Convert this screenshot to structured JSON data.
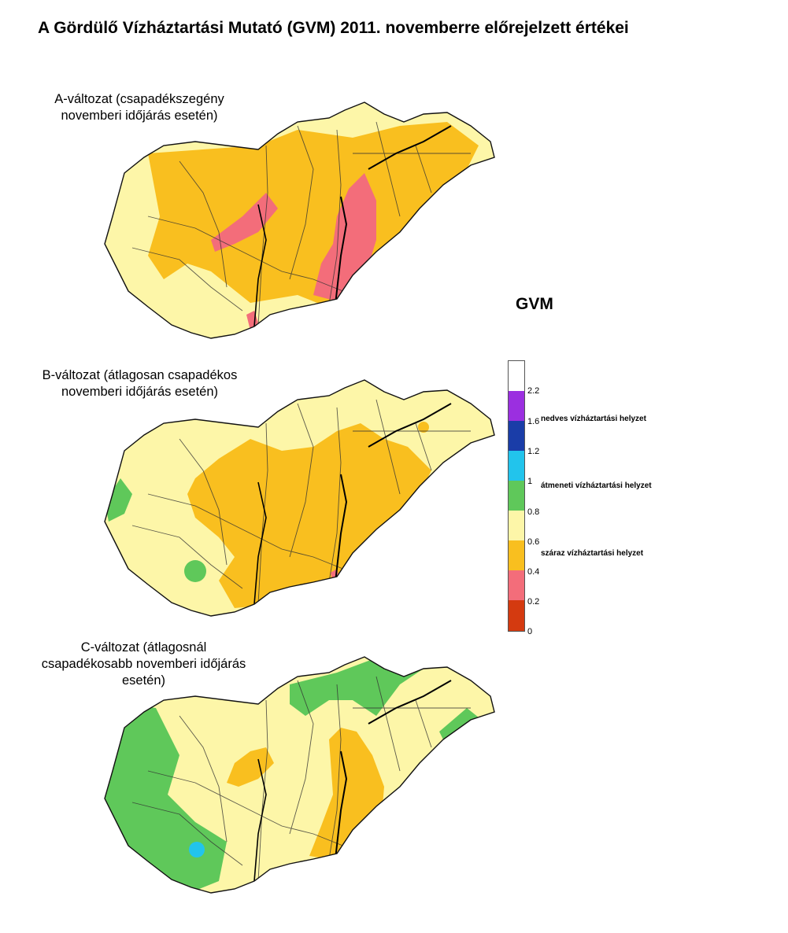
{
  "title": "A Gördülő Vízháztartási Mutató (GVM) 2011. novemberre előrejelzett értékei",
  "maps": [
    {
      "caption_lines": [
        "A-változat (csapadékszegény",
        "novemberi időjárás esetén)"
      ],
      "predominant_class": "száraz vízháztartási helyzet"
    },
    {
      "caption_lines": [
        "B-változat (átlagosan csapadékos",
        "novemberi időjárás esetén)"
      ],
      "predominant_class": "száraz vízháztartási helyzet"
    },
    {
      "caption_lines": [
        "C-változat (átlagosnál",
        "csapadékosabb novemberi időjárás",
        "esetén)"
      ],
      "predominant_class": "száraz vízháztartási helyzet"
    }
  ],
  "legend": {
    "title": "GVM",
    "ticks": [
      "2.2",
      "1.6",
      "1.2",
      "1",
      "0.8",
      "0.6",
      "0.4",
      "0.2",
      "0"
    ],
    "bands": [
      {
        "from": 2.2,
        "to": null,
        "color": "#ffffff"
      },
      {
        "from": 1.6,
        "to": 2.2,
        "color": "#9b2fe0"
      },
      {
        "from": 1.2,
        "to": 1.6,
        "color": "#1a3da8"
      },
      {
        "from": 1.0,
        "to": 1.2,
        "color": "#22c4ec"
      },
      {
        "from": 0.8,
        "to": 1.0,
        "color": "#5fc85a"
      },
      {
        "from": 0.6,
        "to": 0.8,
        "color": "#fdf6a8"
      },
      {
        "from": 0.4,
        "to": 0.6,
        "color": "#f9bf1f"
      },
      {
        "from": 0.2,
        "to": 0.4,
        "color": "#f36d7a"
      },
      {
        "from": 0.0,
        "to": 0.2,
        "color": "#d43a10"
      }
    ],
    "categories": {
      "wet": "nedves vízháztartási helyzet",
      "transitional": "átmeneti vízháztartási helyzet",
      "dry": "száraz vízháztartási helyzet"
    }
  }
}
